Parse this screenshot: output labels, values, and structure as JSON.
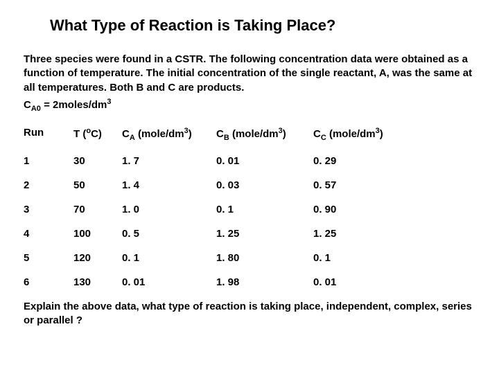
{
  "title": "What Type of Reaction is Taking Place?",
  "intro": "Three species were found in a CSTR. The following concentration data were obtained as a function of temperature. The initial concentration of the single reactant, A, was the same at all temperatures. Both B and C are products.",
  "formula_prefix": "C",
  "formula_sub": "A0",
  "formula_mid": " = 2moles/dm",
  "formula_sup": "3",
  "headers": {
    "run": "Run",
    "temp_pre": "T (",
    "temp_sup": "o",
    "temp_post": "C)",
    "ca_pre": "C",
    "ca_sub": "A",
    "ca_mid": " (mole/dm",
    "ca_sup": "3",
    "ca_post": ")",
    "cb_pre": "C",
    "cb_sub": "B",
    "cb_mid": " (mole/dm",
    "cb_sup": "3",
    "cb_post": ")",
    "cc_pre": "C",
    "cc_sub": "C",
    "cc_mid": " (mole/dm",
    "cc_sup": "3",
    "cc_post": ")"
  },
  "rows": [
    {
      "run": "1",
      "temp": "30",
      "ca": "1. 7",
      "cb": "0. 01",
      "cc": "0. 29"
    },
    {
      "run": "2",
      "temp": "50",
      "ca": "1. 4",
      "cb": "0. 03",
      "cc": "0. 57"
    },
    {
      "run": "3",
      "temp": "70",
      "ca": "1. 0",
      "cb": "0. 1",
      "cc": "0. 90"
    },
    {
      "run": "4",
      "temp": "100",
      "ca": "0. 5",
      "cb": "1. 25",
      "cc": "1. 25"
    },
    {
      "run": "5",
      "temp": "120",
      "ca": "0. 1",
      "cb": "1. 80",
      "cc": "0. 1"
    },
    {
      "run": "6",
      "temp": "130",
      "ca": "0. 01",
      "cb": "1. 98",
      "cc": "0. 01"
    }
  ],
  "footer": "Explain the above data, what type of reaction is taking place, independent, complex, series or parallel ?",
  "style": {
    "background": "#ffffff",
    "text_color": "#000000",
    "title_fontsize": 22,
    "body_fontsize": 15,
    "font_family": "Arial",
    "col_widths": {
      "run": 72,
      "temp": 70,
      "ca": 136,
      "cb": 140,
      "cc": 140
    }
  }
}
